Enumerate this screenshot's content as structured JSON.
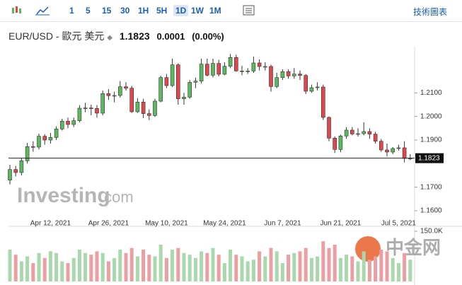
{
  "toolbar": {
    "intervals": [
      "1",
      "5",
      "15",
      "30",
      "1H",
      "5H",
      "1D",
      "1W",
      "1M"
    ],
    "link": "技術圖表"
  },
  "header": {
    "symbol": "EUR/USD - 歐元 美元",
    "price": "1.1823",
    "change": "0.0001",
    "change_pct": "(0.00%)"
  },
  "watermark": {
    "brand": "Investing",
    "suffix": ".com",
    "partner": "中金网"
  },
  "chart_data": {
    "type": "candlestick",
    "up_color": "#5cb85c",
    "down_color": "#e0474c",
    "volume_up_color": "#a8d8ab",
    "volume_down_color": "#ec9fa2",
    "categories": [
      null,
      null,
      null,
      null,
      null,
      null,
      null,
      "Apr 12, 2021",
      null,
      null,
      null,
      null,
      null,
      null,
      null,
      null,
      null,
      "Apr 26, 2021",
      null,
      null,
      null,
      null,
      null,
      null,
      null,
      null,
      null,
      "May 10, 2021",
      null,
      null,
      null,
      null,
      null,
      null,
      null,
      null,
      null,
      "May 24, 2021",
      null,
      null,
      null,
      null,
      null,
      null,
      null,
      null,
      null,
      "Jun 7, 2021",
      null,
      null,
      null,
      null,
      null,
      null,
      null,
      null,
      null,
      "Jun 21, 2021",
      null,
      null,
      null,
      null,
      null,
      null,
      null,
      null,
      null,
      "Jul 5, 2021",
      null,
      null
    ],
    "open": [
      1.173,
      1.1775,
      1.1762,
      1.1812,
      1.1872,
      1.187,
      1.1916,
      1.19,
      1.1911,
      1.1947,
      1.198,
      1.1966,
      1.1982,
      1.2035,
      1.2036,
      1.2034,
      1.2014,
      1.2097,
      1.2088,
      1.2089,
      1.2126,
      1.212,
      1.202,
      1.2061,
      1.2012,
      1.2004,
      1.2065,
      1.2165,
      1.2131,
      1.2219,
      1.2075,
      1.2082,
      1.2145,
      1.215,
      1.2222,
      1.2175,
      1.2225,
      1.2179,
      1.2213,
      1.225,
      1.2193,
      1.2193,
      1.2193,
      1.2227,
      1.2212,
      1.2212,
      1.2127,
      1.2165,
      1.219,
      1.2172,
      1.218,
      1.2174,
      1.2107,
      1.2122,
      1.2125,
      1.1996,
      1.1908,
      1.186,
      1.1917,
      1.1942,
      1.1926,
      1.1927,
      1.1936,
      1.1925,
      1.1895,
      1.1858,
      1.1849,
      1.1864,
      1.1867,
      1.1822
    ],
    "high": [
      1.1795,
      1.179,
      1.1822,
      1.1888,
      1.1895,
      1.1927,
      1.1925,
      1.193,
      1.1958,
      1.199,
      1.1995,
      1.1995,
      1.2048,
      1.2058,
      1.205,
      1.2048,
      1.211,
      1.2116,
      1.2105,
      1.215,
      1.2145,
      1.213,
      1.2078,
      1.2075,
      1.203,
      1.2075,
      1.2173,
      1.218,
      1.2245,
      1.2225,
      1.21,
      1.2155,
      1.2165,
      1.2245,
      1.2245,
      1.2245,
      1.224,
      1.223,
      1.2265,
      1.2262,
      1.2215,
      1.2205,
      1.2254,
      1.2242,
      1.223,
      1.222,
      1.2185,
      1.22,
      1.22,
      1.2205,
      1.2195,
      1.218,
      1.2135,
      1.2145,
      1.2135,
      1.2,
      1.1915,
      1.1923,
      1.1955,
      1.1955,
      1.195,
      1.1975,
      1.195,
      1.1935,
      1.1905,
      1.1885,
      1.187,
      1.188,
      1.1895,
      1.184
    ],
    "low": [
      1.1712,
      1.1745,
      1.175,
      1.18,
      1.185,
      1.186,
      1.188,
      1.1885,
      1.19,
      1.194,
      1.195,
      1.1955,
      1.1975,
      1.2018,
      1.2005,
      1.1995,
      1.2005,
      1.207,
      1.206,
      1.208,
      1.211,
      1.2015,
      1.2015,
      1.1993,
      1.1985,
      1.1998,
      1.206,
      1.212,
      1.2125,
      1.205,
      1.205,
      1.2075,
      1.212,
      1.214,
      1.217,
      1.2165,
      1.217,
      1.2175,
      1.2205,
      1.219,
      1.2175,
      1.218,
      1.2185,
      1.2195,
      1.2195,
      1.2105,
      1.212,
      1.2155,
      1.216,
      1.216,
      1.2155,
      1.2095,
      1.21,
      1.211,
      1.1985,
      1.1895,
      1.1845,
      1.1848,
      1.1905,
      1.192,
      1.1915,
      1.192,
      1.1905,
      1.1885,
      1.185,
      1.183,
      1.184,
      1.1855,
      1.1805,
      1.1815
    ],
    "close": [
      1.1775,
      1.1762,
      1.1812,
      1.1872,
      1.187,
      1.1916,
      1.19,
      1.1911,
      1.1947,
      1.198,
      1.1966,
      1.1982,
      1.2035,
      1.2036,
      1.2034,
      1.2014,
      1.2097,
      1.2088,
      1.2089,
      1.2126,
      1.212,
      1.202,
      1.2061,
      1.2012,
      1.2004,
      1.2065,
      1.2165,
      1.2131,
      1.2219,
      1.2075,
      1.2082,
      1.2145,
      1.215,
      1.2222,
      1.2175,
      1.2225,
      1.2179,
      1.2213,
      1.225,
      1.2193,
      1.2193,
      1.2193,
      1.2227,
      1.2212,
      1.2212,
      1.2127,
      1.2165,
      1.219,
      1.2172,
      1.218,
      1.2174,
      1.2107,
      1.2122,
      1.2125,
      1.1996,
      1.1908,
      1.186,
      1.1917,
      1.1942,
      1.1926,
      1.1927,
      1.1936,
      1.1925,
      1.1895,
      1.1858,
      1.1849,
      1.1864,
      1.1867,
      1.1822,
      1.1823
    ],
    "volume": [
      95000,
      80000,
      60000,
      75000,
      55000,
      85000,
      70000,
      90000,
      85000,
      60000,
      55000,
      70000,
      95000,
      85000,
      80000,
      90000,
      85000,
      60000,
      70000,
      95000,
      85000,
      100000,
      75000,
      95000,
      80000,
      75000,
      110000,
      70000,
      95000,
      100000,
      85000,
      80000,
      70000,
      90000,
      85000,
      100000,
      80000,
      55000,
      95000,
      80000,
      75000,
      60000,
      65000,
      90000,
      75000,
      100000,
      90000,
      55000,
      80000,
      85000,
      90000,
      100000,
      70000,
      75000,
      120000,
      100000,
      110000,
      70000,
      80000,
      75000,
      60000,
      90000,
      65000,
      75000,
      95000,
      90000,
      70000,
      55000,
      85000,
      65000
    ],
    "ylim": [
      1.154,
      1.229
    ],
    "yticks": [
      {
        "value": 1.21,
        "label": "1.2100"
      },
      {
        "value": 1.2,
        "label": "1.2000"
      },
      {
        "value": 1.19,
        "label": "1.1900"
      },
      {
        "value": 1.17,
        "label": "1.1700"
      },
      {
        "value": 1.16,
        "label": "1.1600"
      }
    ],
    "volume_ylim": [
      0,
      150000
    ],
    "volume_ticks": [
      {
        "value": 150000,
        "label": "150.0K"
      }
    ],
    "last_price": {
      "value": 1.1823,
      "label": "1.1823"
    }
  }
}
